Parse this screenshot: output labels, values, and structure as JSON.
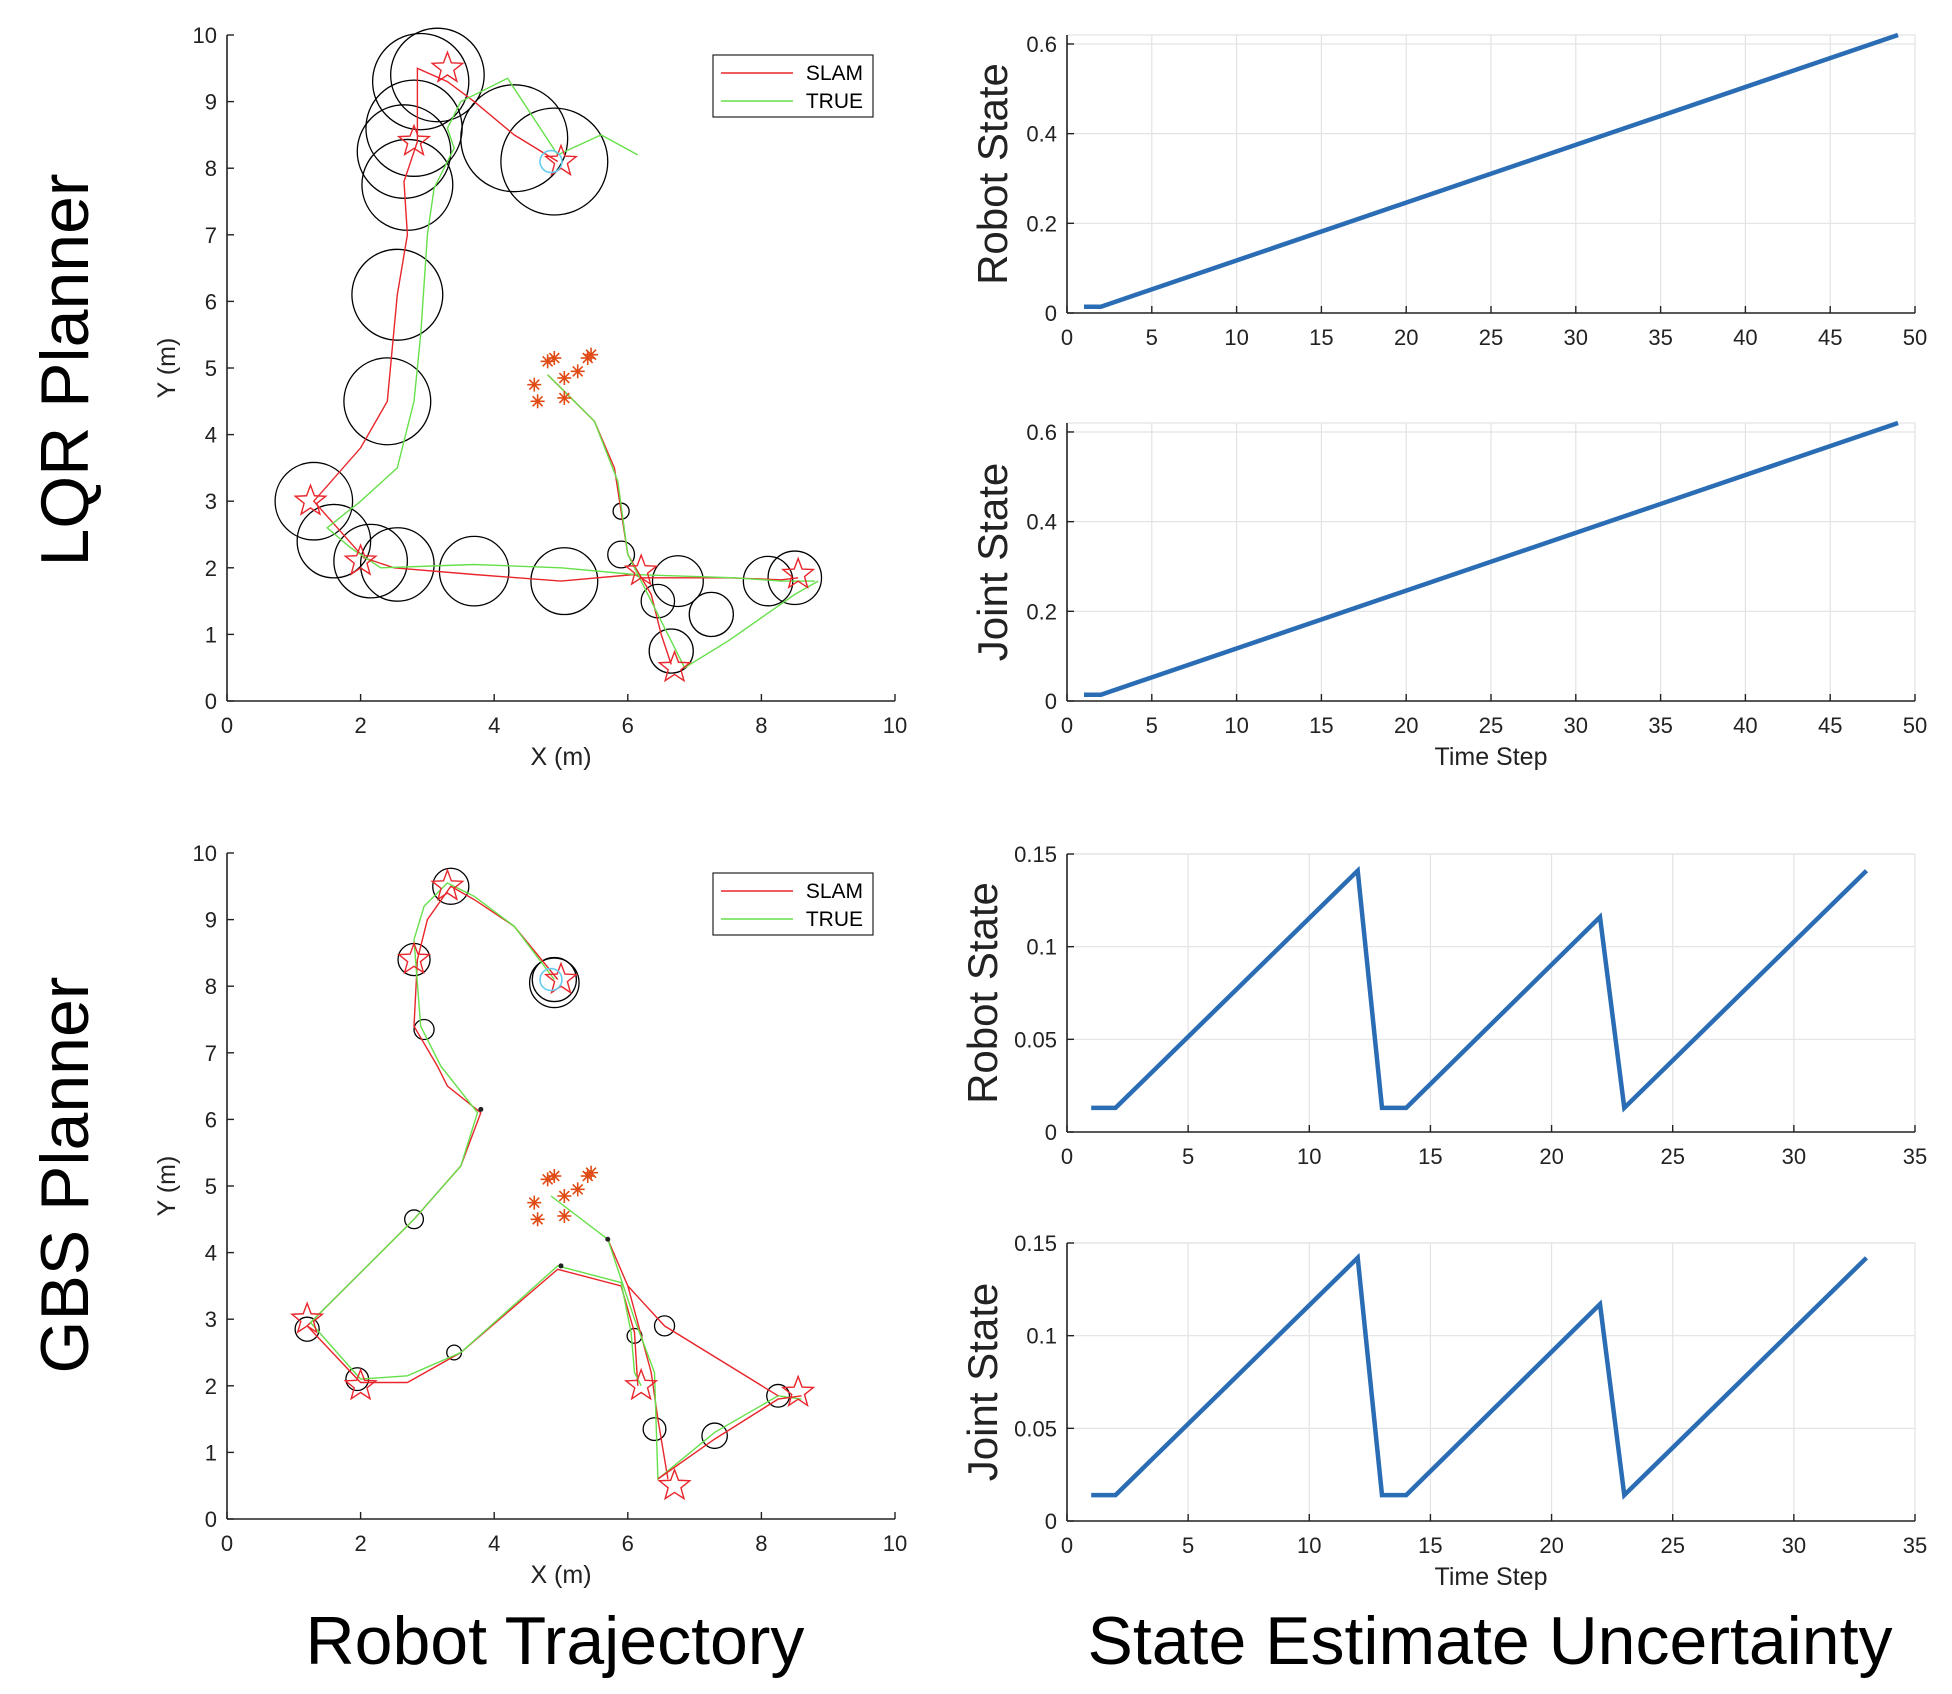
{
  "figure": {
    "row_labels": [
      "LQR Planner",
      "GBS Planner"
    ],
    "column_labels": [
      "Robot Trajectory",
      "State Estimate Uncertainty"
    ]
  },
  "colors": {
    "slam": "#e8262b",
    "true": "#66e04a",
    "circle": "#000000",
    "landmark": "#e04a14",
    "goal": "#66ccee",
    "uncertainty_line": "#2a6db5",
    "grid": "#e3e3e3"
  },
  "chart_data": [
    {
      "id": "lqr-trajectory",
      "type": "line",
      "panel_title": "",
      "xlabel": "X (m)",
      "ylabel": "Y (m)",
      "xlim": [
        0,
        10
      ],
      "ylim": [
        0,
        10
      ],
      "xticks": [
        0,
        2,
        4,
        6,
        8,
        10
      ],
      "yticks": [
        0,
        1,
        2,
        3,
        4,
        5,
        6,
        7,
        8,
        9,
        10
      ],
      "grid": false,
      "legend": {
        "position": "top-right",
        "entries": [
          "SLAM",
          "TRUE"
        ]
      },
      "series": [
        {
          "name": "SLAM",
          "x": [
            4.95,
            4.3,
            3.7,
            3.3,
            2.85,
            2.85,
            2.65,
            2.7,
            2.55,
            2.4,
            2.0,
            1.3,
            2.05,
            2.5,
            3.7,
            5.0,
            6.1,
            6.2,
            7.5,
            8.3,
            8.55
          ],
          "y": [
            8.1,
            8.5,
            9.0,
            9.3,
            9.5,
            8.4,
            7.8,
            7.0,
            6.1,
            4.5,
            3.8,
            3.0,
            2.15,
            2.0,
            1.9,
            1.8,
            1.9,
            1.85,
            1.85,
            1.82,
            1.85
          ]
        },
        {
          "name": "TRUE",
          "x": [
            6.15,
            5.6,
            4.95,
            4.2,
            3.5,
            3.3,
            3.4,
            3.1,
            3.0,
            2.9,
            2.8,
            2.55,
            2.0,
            1.5,
            1.85,
            2.3,
            3.7,
            5.0,
            6.1,
            7.6,
            8.3,
            8.8
          ],
          "y": [
            8.2,
            8.5,
            8.2,
            9.35,
            9.0,
            8.6,
            8.3,
            7.7,
            7.0,
            5.5,
            4.5,
            3.5,
            3.0,
            2.6,
            2.3,
            2.0,
            2.05,
            2.0,
            1.9,
            1.85,
            1.8,
            1.8
          ]
        },
        {
          "name": "SLAM",
          "x": [
            4.8,
            5.5,
            5.8,
            6.0,
            6.35,
            6.5,
            6.65
          ],
          "y": [
            4.9,
            4.2,
            3.5,
            2.2,
            1.6,
            1.0,
            0.55
          ]
        },
        {
          "name": "TRUE",
          "x": [
            4.8,
            5.5,
            5.85,
            6.0,
            6.35,
            6.6,
            6.85,
            7.5,
            8.5,
            8.85
          ],
          "y": [
            4.9,
            4.2,
            3.3,
            2.2,
            1.5,
            1.0,
            0.5,
            0.9,
            1.6,
            1.8
          ]
        }
      ],
      "uncertainty_circles": [
        {
          "x": 2.9,
          "y": 9.3,
          "r": 0.72
        },
        {
          "x": 3.15,
          "y": 9.4,
          "r": 0.7
        },
        {
          "x": 2.8,
          "y": 8.6,
          "r": 0.72
        },
        {
          "x": 2.65,
          "y": 8.25,
          "r": 0.7
        },
        {
          "x": 2.7,
          "y": 7.75,
          "r": 0.68
        },
        {
          "x": 4.3,
          "y": 8.45,
          "r": 0.8
        },
        {
          "x": 4.9,
          "y": 8.1,
          "r": 0.8
        },
        {
          "x": 2.55,
          "y": 6.1,
          "r": 0.68
        },
        {
          "x": 2.4,
          "y": 4.5,
          "r": 0.65
        },
        {
          "x": 1.3,
          "y": 3.0,
          "r": 0.58
        },
        {
          "x": 1.6,
          "y": 2.4,
          "r": 0.55
        },
        {
          "x": 2.15,
          "y": 2.1,
          "r": 0.55
        },
        {
          "x": 2.55,
          "y": 2.05,
          "r": 0.55
        },
        {
          "x": 3.7,
          "y": 1.95,
          "r": 0.52
        },
        {
          "x": 5.05,
          "y": 1.8,
          "r": 0.5
        },
        {
          "x": 5.9,
          "y": 2.85,
          "r": 0.12
        },
        {
          "x": 5.9,
          "y": 2.2,
          "r": 0.2
        },
        {
          "x": 6.75,
          "y": 1.8,
          "r": 0.38
        },
        {
          "x": 6.45,
          "y": 1.5,
          "r": 0.25
        },
        {
          "x": 7.25,
          "y": 1.3,
          "r": 0.33
        },
        {
          "x": 6.65,
          "y": 0.75,
          "r": 0.33
        },
        {
          "x": 8.1,
          "y": 1.8,
          "r": 0.37
        },
        {
          "x": 8.5,
          "y": 1.85,
          "r": 0.4
        }
      ],
      "star_markers": [
        {
          "x": 3.3,
          "y": 9.5
        },
        {
          "x": 2.8,
          "y": 8.4
        },
        {
          "x": 5.0,
          "y": 8.1
        },
        {
          "x": 1.25,
          "y": 3.0
        },
        {
          "x": 2.0,
          "y": 2.1
        },
        {
          "x": 6.2,
          "y": 1.95
        },
        {
          "x": 6.7,
          "y": 0.5
        },
        {
          "x": 8.55,
          "y": 1.9
        }
      ],
      "landmarks": [
        {
          "x": 4.6,
          "y": 4.75
        },
        {
          "x": 4.8,
          "y": 5.1
        },
        {
          "x": 4.9,
          "y": 5.15
        },
        {
          "x": 5.05,
          "y": 4.85
        },
        {
          "x": 5.25,
          "y": 4.95
        },
        {
          "x": 5.4,
          "y": 5.15
        },
        {
          "x": 5.45,
          "y": 5.2
        },
        {
          "x": 4.65,
          "y": 4.5
        },
        {
          "x": 5.05,
          "y": 4.55
        }
      ],
      "goal": {
        "x": 4.85,
        "y": 8.1
      }
    },
    {
      "id": "lqr-robot-state",
      "type": "line",
      "panel_title": "",
      "xlabel": "",
      "ylabel": "Robot State",
      "xlim": [
        0,
        50
      ],
      "ylim": [
        0,
        0.62
      ],
      "xticks": [
        0,
        5,
        10,
        15,
        20,
        25,
        30,
        35,
        40,
        45,
        50
      ],
      "yticks": [
        0,
        0.2,
        0.4,
        0.6
      ],
      "grid": true,
      "series": [
        {
          "x": [
            1,
            2,
            49
          ],
          "y": [
            0.014,
            0.014,
            0.62
          ]
        }
      ]
    },
    {
      "id": "lqr-joint-state",
      "type": "line",
      "panel_title": "",
      "xlabel": "Time Step",
      "ylabel": "Joint State",
      "xlim": [
        0,
        50
      ],
      "ylim": [
        0,
        0.62
      ],
      "xticks": [
        0,
        5,
        10,
        15,
        20,
        25,
        30,
        35,
        40,
        45,
        50
      ],
      "yticks": [
        0,
        0.2,
        0.4,
        0.6
      ],
      "grid": true,
      "series": [
        {
          "x": [
            1,
            2,
            49
          ],
          "y": [
            0.014,
            0.014,
            0.62
          ]
        }
      ]
    },
    {
      "id": "gbs-trajectory",
      "type": "line",
      "panel_title": "",
      "xlabel": "X (m)",
      "ylabel": "Y (m)",
      "xlim": [
        0,
        10
      ],
      "ylim": [
        0,
        10
      ],
      "xticks": [
        0,
        2,
        4,
        6,
        8,
        10
      ],
      "yticks": [
        0,
        1,
        2,
        3,
        4,
        5,
        6,
        7,
        8,
        9,
        10
      ],
      "grid": false,
      "legend": {
        "position": "top-right",
        "entries": [
          "SLAM",
          "TRUE"
        ]
      },
      "series": [
        {
          "name": "SLAM",
          "x": [
            4.95,
            4.3,
            3.7,
            3.35,
            3.0,
            2.85,
            2.8,
            3.15,
            3.3,
            3.8,
            3.5,
            2.8,
            1.2,
            2.0,
            2.7,
            3.5,
            4.95,
            5.9,
            6.1,
            6.15
          ],
          "y": [
            8.1,
            8.9,
            9.3,
            9.5,
            9.0,
            8.4,
            7.4,
            6.8,
            6.5,
            6.1,
            5.3,
            4.5,
            2.9,
            2.05,
            2.05,
            2.5,
            3.75,
            3.5,
            2.8,
            2.0
          ]
        },
        {
          "name": "TRUE",
          "x": [
            4.9,
            4.3,
            3.7,
            3.3,
            2.95,
            2.8,
            2.9,
            3.2,
            3.75,
            3.5,
            2.8,
            1.25,
            2.0,
            2.7,
            3.5,
            4.95,
            5.9,
            6.05,
            6.1,
            6.2
          ],
          "y": [
            8.1,
            8.9,
            9.35,
            9.55,
            9.2,
            8.7,
            7.4,
            6.8,
            6.1,
            5.3,
            4.5,
            2.95,
            2.1,
            2.15,
            2.5,
            3.8,
            3.55,
            2.8,
            2.2,
            2.0
          ]
        },
        {
          "name": "SLAM",
          "x": [
            5.7,
            6.0,
            6.35,
            6.45,
            6.6
          ],
          "y": [
            4.2,
            3.5,
            2.2,
            1.5,
            0.6
          ]
        },
        {
          "name": "TRUE",
          "x": [
            4.85,
            5.7,
            6.1,
            6.4,
            6.45,
            7.3,
            8.25,
            8.6
          ],
          "y": [
            4.85,
            4.2,
            3.0,
            2.2,
            0.6,
            1.3,
            1.85,
            1.8
          ]
        },
        {
          "name": "SLAM",
          "x": [
            6.45,
            7.3,
            8.25,
            8.6
          ],
          "y": [
            0.6,
            1.2,
            1.8,
            1.85
          ]
        },
        {
          "name": "SLAM",
          "x": [
            6.0,
            6.55,
            8.25
          ],
          "y": [
            3.5,
            2.9,
            1.85
          ]
        }
      ],
      "uncertainty_circles": [
        {
          "x": 3.35,
          "y": 9.5,
          "r": 0.27
        },
        {
          "x": 2.8,
          "y": 8.4,
          "r": 0.24
        },
        {
          "x": 4.9,
          "y": 8.1,
          "r": 0.33
        },
        {
          "x": 4.9,
          "y": 8.05,
          "r": 0.37
        },
        {
          "x": 2.95,
          "y": 7.35,
          "r": 0.15
        },
        {
          "x": 2.8,
          "y": 4.5,
          "r": 0.14
        },
        {
          "x": 1.2,
          "y": 2.85,
          "r": 0.18
        },
        {
          "x": 1.95,
          "y": 2.1,
          "r": 0.17
        },
        {
          "x": 3.4,
          "y": 2.5,
          "r": 0.11
        },
        {
          "x": 6.1,
          "y": 2.75,
          "r": 0.11
        },
        {
          "x": 6.55,
          "y": 2.9,
          "r": 0.15
        },
        {
          "x": 6.4,
          "y": 1.35,
          "r": 0.17
        },
        {
          "x": 7.3,
          "y": 1.25,
          "r": 0.19
        },
        {
          "x": 8.25,
          "y": 1.85,
          "r": 0.17
        }
      ],
      "star_markers": [
        {
          "x": 3.3,
          "y": 9.5
        },
        {
          "x": 2.8,
          "y": 8.4
        },
        {
          "x": 5.0,
          "y": 8.1
        },
        {
          "x": 1.2,
          "y": 3.0
        },
        {
          "x": 2.0,
          "y": 2.0
        },
        {
          "x": 6.2,
          "y": 2.0
        },
        {
          "x": 6.7,
          "y": 0.5
        },
        {
          "x": 8.55,
          "y": 1.9
        }
      ],
      "landmarks": [
        {
          "x": 4.6,
          "y": 4.75
        },
        {
          "x": 4.8,
          "y": 5.1
        },
        {
          "x": 4.9,
          "y": 5.15
        },
        {
          "x": 5.05,
          "y": 4.85
        },
        {
          "x": 5.25,
          "y": 4.95
        },
        {
          "x": 5.4,
          "y": 5.15
        },
        {
          "x": 5.45,
          "y": 5.2
        },
        {
          "x": 4.65,
          "y": 4.5
        },
        {
          "x": 5.05,
          "y": 4.55
        }
      ],
      "goal": {
        "x": 4.85,
        "y": 8.1
      },
      "waypoint_dots": [
        {
          "x": 3.8,
          "y": 6.15
        },
        {
          "x": 5.0,
          "y": 3.8
        },
        {
          "x": 5.7,
          "y": 4.2
        }
      ]
    },
    {
      "id": "gbs-robot-state",
      "type": "line",
      "panel_title": "",
      "xlabel": "",
      "ylabel": "Robot State",
      "xlim": [
        0,
        35
      ],
      "ylim": [
        0,
        0.15
      ],
      "xticks": [
        0,
        5,
        10,
        15,
        20,
        25,
        30,
        35
      ],
      "yticks": [
        0,
        0.05,
        0.1,
        0.15
      ],
      "ytick_labels": [
        "0",
        "0.05",
        "0.1",
        "0.15"
      ],
      "grid": true,
      "series": [
        {
          "x": [
            1,
            2,
            12,
            13,
            14,
            22,
            23,
            33
          ],
          "y": [
            0.013,
            0.013,
            0.141,
            0.013,
            0.013,
            0.116,
            0.013,
            0.141
          ]
        }
      ]
    },
    {
      "id": "gbs-joint-state",
      "type": "line",
      "panel_title": "",
      "xlabel": "Time Step",
      "ylabel": "Joint State",
      "xlim": [
        0,
        35
      ],
      "ylim": [
        0,
        0.15
      ],
      "xticks": [
        0,
        5,
        10,
        15,
        20,
        25,
        30,
        35
      ],
      "yticks": [
        0,
        0.05,
        0.1,
        0.15
      ],
      "ytick_labels": [
        "0",
        "0.05",
        "0.1",
        "0.15"
      ],
      "grid": true,
      "series": [
        {
          "x": [
            1,
            2,
            12,
            13,
            14,
            22,
            23,
            33
          ],
          "y": [
            0.014,
            0.014,
            0.142,
            0.014,
            0.014,
            0.117,
            0.014,
            0.142
          ]
        }
      ]
    }
  ]
}
